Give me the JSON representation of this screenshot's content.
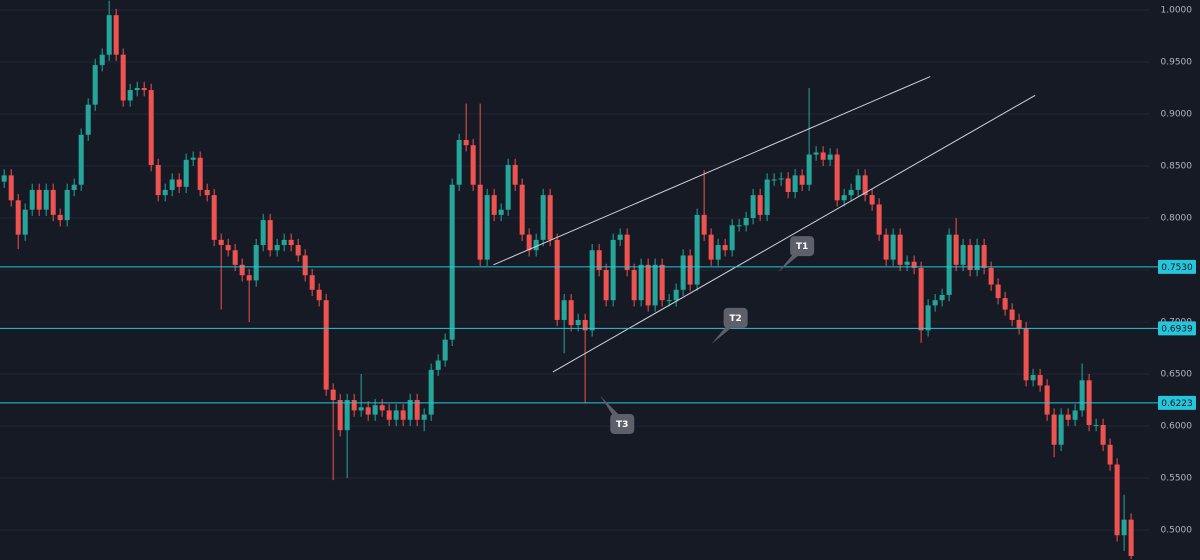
{
  "chart_data": {
    "type": "candlestick",
    "up_color": "#26a69a",
    "down_color": "#ef5350",
    "grid": true,
    "xlim": [
      -0.6,
      163.7
    ],
    "ylim": [
      0.4712,
      1.0096
    ],
    "yticks": [
      {
        "value": 1,
        "label": "1.0000"
      },
      {
        "value": 0.95,
        "label": "0.9500"
      },
      {
        "value": 0.9,
        "label": "0.9000"
      },
      {
        "value": 0.85,
        "label": "0.8500"
      },
      {
        "value": 0.8,
        "label": "0.8000"
      },
      {
        "value": 0.75,
        "label": "0.7500"
      },
      {
        "value": 0.7,
        "label": "0.7000"
      },
      {
        "value": 0.65,
        "label": "0.6500"
      },
      {
        "value": 0.6,
        "label": "0.6000"
      },
      {
        "value": 0.55,
        "label": "0.5500"
      },
      {
        "value": 0.5,
        "label": "0.5000"
      }
    ],
    "open": [
      0.835,
      0.841,
      0.817,
      0.784,
      0.808,
      0.827,
      0.808,
      0.827,
      0.803,
      0.798,
      0.827,
      0.832,
      0.88,
      0.909,
      0.947,
      0.957,
      0.995,
      0.957,
      0.913,
      0.923,
      0.925,
      0.923,
      0.851,
      0.822,
      0.827,
      0.837,
      0.83,
      0.856,
      0.858,
      0.827,
      0.822,
      0.779,
      0.774,
      0.769,
      0.755,
      0.745,
      0.74,
      0.774,
      0.798,
      0.769,
      0.774,
      0.779,
      0.774,
      0.764,
      0.745,
      0.731,
      0.721,
      0.635,
      0.625,
      0.596,
      0.625,
      0.615,
      0.618,
      0.611,
      0.62,
      0.615,
      0.606,
      0.615,
      0.606,
      0.625,
      0.606,
      0.611,
      0.654,
      0.663,
      0.683,
      0.832,
      0.875,
      0.87,
      0.832,
      0.76,
      0.822,
      0.803,
      0.808,
      0.851,
      0.832,
      0.784,
      0.769,
      0.779,
      0.822,
      0.779,
      0.702,
      0.721,
      0.697,
      0.702,
      0.692,
      0.769,
      0.75,
      0.721,
      0.779,
      0.784,
      0.75,
      0.721,
      0.755,
      0.716,
      0.755,
      0.721,
      0.721,
      0.731,
      0.764,
      0.736,
      0.803,
      0.784,
      0.76,
      0.774,
      0.769,
      0.793,
      0.793,
      0.8,
      0.822,
      0.803,
      0.837,
      0.837,
      0.838,
      0.825,
      0.841,
      0.832,
      0.861,
      0.863,
      0.856,
      0.861,
      0.817,
      0.822,
      0.827,
      0.841,
      0.822,
      0.813,
      0.784,
      0.76,
      0.784,
      0.755,
      0.758,
      0.752,
      0.692,
      0.716,
      0.721,
      0.726,
      0.784,
      0.755,
      0.774,
      0.75,
      0.774,
      0.752,
      0.736,
      0.723,
      0.712,
      0.702,
      0.694,
      0.644,
      0.649,
      0.639,
      0.611,
      0.582,
      0.611,
      0.606,
      0.615,
      0.644,
      0.601,
      0.601,
      0.582,
      0.563,
      0.495,
      0.51
    ],
    "high": [
      0.847,
      0.847,
      0.823,
      0.814,
      0.833,
      0.833,
      0.833,
      0.833,
      0.809,
      0.833,
      0.838,
      0.886,
      0.915,
      0.953,
      0.963,
      1.009,
      1.001,
      0.963,
      0.929,
      0.931,
      0.931,
      0.929,
      0.857,
      0.833,
      0.843,
      0.843,
      0.862,
      0.864,
      0.864,
      0.833,
      0.828,
      0.785,
      0.78,
      0.775,
      0.761,
      0.751,
      0.78,
      0.804,
      0.804,
      0.78,
      0.785,
      0.785,
      0.78,
      0.77,
      0.751,
      0.737,
      0.727,
      0.641,
      0.631,
      0.631,
      0.631,
      0.65,
      0.624,
      0.626,
      0.626,
      0.621,
      0.621,
      0.621,
      0.631,
      0.631,
      0.617,
      0.66,
      0.669,
      0.689,
      0.838,
      0.881,
      0.91,
      0.876,
      0.91,
      0.828,
      0.828,
      0.814,
      0.857,
      0.857,
      0.838,
      0.79,
      0.785,
      0.828,
      0.828,
      0.785,
      0.727,
      0.727,
      0.708,
      0.708,
      0.775,
      0.775,
      0.756,
      0.785,
      0.79,
      0.79,
      0.756,
      0.761,
      0.761,
      0.761,
      0.761,
      0.727,
      0.737,
      0.77,
      0.77,
      0.809,
      0.846,
      0.79,
      0.78,
      0.78,
      0.799,
      0.799,
      0.806,
      0.828,
      0.828,
      0.843,
      0.843,
      0.844,
      0.844,
      0.847,
      0.847,
      0.925,
      0.869,
      0.869,
      0.867,
      0.867,
      0.828,
      0.833,
      0.847,
      0.847,
      0.828,
      0.819,
      0.79,
      0.79,
      0.79,
      0.764,
      0.764,
      0.758,
      0.722,
      0.727,
      0.732,
      0.79,
      0.8,
      0.78,
      0.78,
      0.78,
      0.78,
      0.758,
      0.742,
      0.729,
      0.718,
      0.708,
      0.7,
      0.655,
      0.655,
      0.645,
      0.617,
      0.617,
      0.617,
      0.621,
      0.66,
      0.65,
      0.607,
      0.607,
      0.588,
      0.569,
      0.534,
      0.516
    ],
    "low": [
      0.829,
      0.811,
      0.77,
      0.778,
      0.802,
      0.802,
      0.802,
      0.797,
      0.792,
      0.792,
      0.821,
      0.826,
      0.874,
      0.903,
      0.941,
      0.951,
      0.951,
      0.907,
      0.907,
      0.917,
      0.917,
      0.845,
      0.816,
      0.816,
      0.821,
      0.824,
      0.824,
      0.85,
      0.821,
      0.816,
      0.773,
      0.712,
      0.763,
      0.749,
      0.739,
      0.7,
      0.734,
      0.768,
      0.763,
      0.763,
      0.768,
      0.768,
      0.758,
      0.739,
      0.725,
      0.715,
      0.629,
      0.548,
      0.59,
      0.55,
      0.609,
      0.609,
      0.605,
      0.605,
      0.609,
      0.6,
      0.6,
      0.6,
      0.6,
      0.6,
      0.595,
      0.605,
      0.648,
      0.657,
      0.677,
      0.826,
      0.864,
      0.826,
      0.754,
      0.754,
      0.797,
      0.797,
      0.802,
      0.826,
      0.778,
      0.763,
      0.763,
      0.773,
      0.773,
      0.696,
      0.67,
      0.691,
      0.691,
      0.622,
      0.686,
      0.744,
      0.715,
      0.715,
      0.773,
      0.744,
      0.715,
      0.715,
      0.71,
      0.71,
      0.715,
      0.715,
      0.715,
      0.725,
      0.73,
      0.73,
      0.778,
      0.754,
      0.754,
      0.763,
      0.763,
      0.787,
      0.787,
      0.794,
      0.797,
      0.797,
      0.831,
      0.831,
      0.819,
      0.819,
      0.826,
      0.826,
      0.855,
      0.85,
      0.85,
      0.811,
      0.811,
      0.816,
      0.821,
      0.816,
      0.807,
      0.778,
      0.754,
      0.754,
      0.749,
      0.749,
      0.746,
      0.68,
      0.686,
      0.71,
      0.715,
      0.72,
      0.749,
      0.749,
      0.744,
      0.744,
      0.746,
      0.73,
      0.717,
      0.706,
      0.696,
      0.688,
      0.638,
      0.638,
      0.633,
      0.605,
      0.57,
      0.576,
      0.6,
      0.6,
      0.609,
      0.595,
      0.595,
      0.576,
      0.557,
      0.489,
      0.48,
      0.472
    ],
    "close": [
      0.841,
      0.817,
      0.784,
      0.808,
      0.827,
      0.808,
      0.827,
      0.803,
      0.798,
      0.827,
      0.832,
      0.88,
      0.909,
      0.947,
      0.957,
      0.995,
      0.957,
      0.913,
      0.923,
      0.925,
      0.923,
      0.851,
      0.822,
      0.827,
      0.837,
      0.83,
      0.856,
      0.858,
      0.827,
      0.822,
      0.779,
      0.774,
      0.769,
      0.755,
      0.745,
      0.74,
      0.774,
      0.798,
      0.769,
      0.774,
      0.779,
      0.774,
      0.764,
      0.745,
      0.731,
      0.721,
      0.635,
      0.625,
      0.596,
      0.625,
      0.615,
      0.618,
      0.611,
      0.62,
      0.615,
      0.606,
      0.615,
      0.606,
      0.625,
      0.606,
      0.611,
      0.654,
      0.663,
      0.683,
      0.832,
      0.875,
      0.87,
      0.832,
      0.76,
      0.822,
      0.803,
      0.808,
      0.851,
      0.832,
      0.784,
      0.769,
      0.779,
      0.822,
      0.779,
      0.702,
      0.721,
      0.697,
      0.702,
      0.692,
      0.769,
      0.75,
      0.721,
      0.779,
      0.784,
      0.75,
      0.721,
      0.755,
      0.716,
      0.755,
      0.721,
      0.721,
      0.731,
      0.764,
      0.736,
      0.803,
      0.784,
      0.76,
      0.774,
      0.769,
      0.793,
      0.793,
      0.8,
      0.822,
      0.803,
      0.837,
      0.837,
      0.838,
      0.825,
      0.841,
      0.832,
      0.861,
      0.863,
      0.856,
      0.861,
      0.817,
      0.822,
      0.827,
      0.841,
      0.822,
      0.813,
      0.784,
      0.76,
      0.784,
      0.755,
      0.758,
      0.752,
      0.692,
      0.716,
      0.721,
      0.726,
      0.784,
      0.755,
      0.774,
      0.75,
      0.774,
      0.752,
      0.736,
      0.723,
      0.712,
      0.702,
      0.694,
      0.644,
      0.649,
      0.639,
      0.611,
      0.582,
      0.611,
      0.606,
      0.615,
      0.644,
      0.601,
      0.601,
      0.582,
      0.563,
      0.495,
      0.51,
      0.475
    ],
    "price_lines": [
      {
        "value": 0.753,
        "label": "0.7530",
        "color": "#26c6da"
      },
      {
        "value": 0.6939,
        "label": "0.6939",
        "color": "#26c6da"
      },
      {
        "value": 0.6223,
        "label": "0.6223",
        "color": "#26c6da"
      }
    ],
    "trend_lines": [
      {
        "x": [
          69.9,
          132.3
        ],
        "y": [
          0.755,
          0.936
        ],
        "color": "#d1d4dc"
      },
      {
        "x": [
          78.4,
          147.3
        ],
        "y": [
          0.652,
          0.918
        ],
        "color": "#d1d4dc"
      }
    ],
    "annotations": [
      {
        "text": "T1",
        "x": 114,
        "y": 0.773,
        "pointer": "down"
      },
      {
        "text": "T2",
        "x": 104.5,
        "y": 0.704,
        "pointer": "down"
      },
      {
        "text": "T3",
        "x": 88.3,
        "y": 0.602,
        "pointer": "up"
      }
    ]
  }
}
